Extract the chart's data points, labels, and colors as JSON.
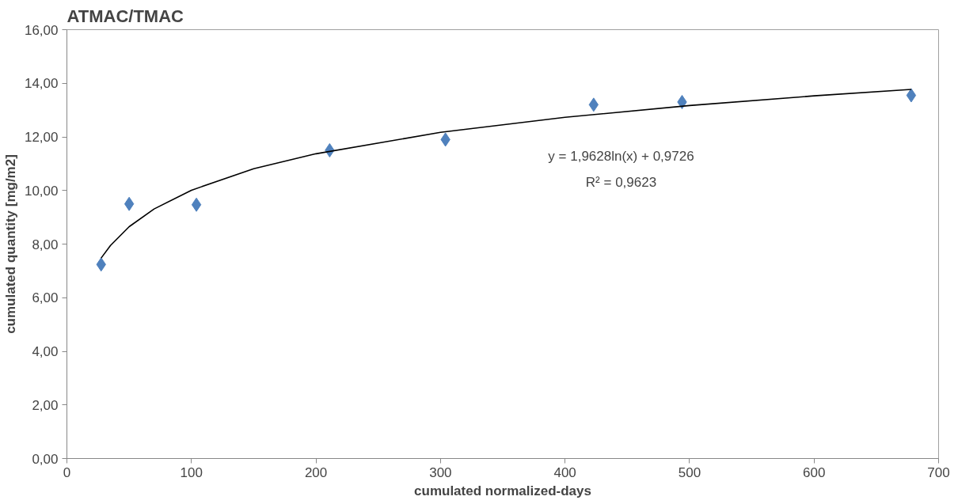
{
  "chart_data": {
    "type": "scatter",
    "title": "ATMAC/TMAC",
    "xlabel": "cumulated normalized-days",
    "ylabel": "cumulated quantity [mg/m2]",
    "series": [
      {
        "color": "#4f81bd",
        "x": [
          27.5,
          50,
          104,
          211,
          304,
          423,
          494,
          678
        ],
        "values": [
          7.24,
          9.5,
          9.47,
          11.5,
          11.9,
          13.2,
          13.3,
          13.55
        ],
        "marker": "diamond"
      },
      {
        "type": "line",
        "color": "#000000",
        "x": [
          27.5,
          35,
          50,
          70,
          100,
          150,
          200,
          300,
          400,
          500,
          600,
          678
        ],
        "values": [
          7.48,
          7.95,
          8.65,
          9.31,
          10.01,
          10.81,
          11.37,
          12.17,
          12.73,
          13.17,
          13.53,
          13.77
        ]
      }
    ],
    "annotations": [
      "y = 1,9628ln(x) + 0,9726",
      "R² = 0,9623"
    ],
    "xlim": [
      0,
      700
    ],
    "xticks": [
      0,
      100,
      200,
      300,
      400,
      500,
      600,
      700
    ],
    "ylim": [
      0,
      16
    ],
    "yticks": [
      {
        "value": 0,
        "label": "0,00"
      },
      {
        "value": 2,
        "label": "2,00"
      },
      {
        "value": 4,
        "label": "4,00"
      },
      {
        "value": 6,
        "label": "6,00"
      },
      {
        "value": 8,
        "label": "8,00"
      },
      {
        "value": 10,
        "label": "10,00"
      },
      {
        "value": 12,
        "label": "12,00"
      },
      {
        "value": 14,
        "label": "14,00"
      },
      {
        "value": 16,
        "label": "16,00"
      }
    ],
    "grid": false
  }
}
